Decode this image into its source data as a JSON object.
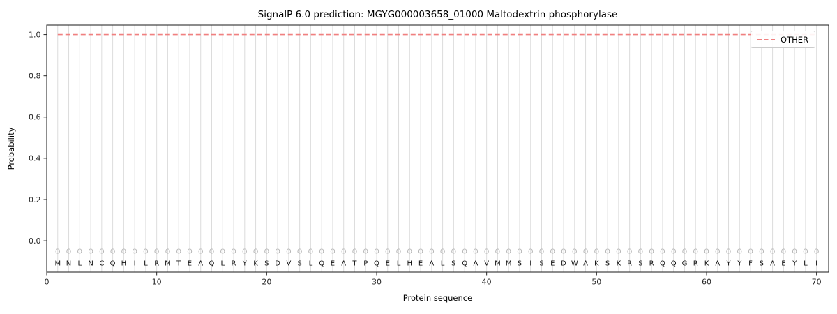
{
  "figure": {
    "background": "#ffffff"
  },
  "chart_data": {
    "type": "line",
    "title": "SignalP 6.0 prediction: MGYG000003658_01000 Maltodextrin phosphorylase",
    "xlabel": "Protein sequence",
    "ylabel": "Probability",
    "xlim": [
      0,
      71.1
    ],
    "ylim": [
      -0.152,
      1.046
    ],
    "xticks": [
      0,
      10,
      20,
      30,
      40,
      50,
      60,
      70
    ],
    "yticks": [
      "0.0",
      "0.2",
      "0.4",
      "0.6",
      "0.8",
      "1.0"
    ],
    "grid": "vertical gridline at every residue position",
    "legend": {
      "position": "upper right",
      "entries": [
        {
          "label": "OTHER",
          "color": "#f08080",
          "linestyle": "dashed"
        }
      ]
    },
    "series": [
      {
        "name": "OTHER",
        "color": "#f08080",
        "linestyle": "dashed",
        "x_start": 1,
        "x_end": 70,
        "value": 1.0
      }
    ],
    "sequence": "MNLNCQHILRMTEAQLRYKSDVSLQEATPQELHEALSQAVMMSISEDWAKSKRSRQQGRKAYYFSAEYLI",
    "position_marker": {
      "symbol": "O",
      "y": -0.05,
      "color": "#b3b3b3"
    },
    "sequence_letter_y": -0.107,
    "colors": {
      "grid": "#dcdcdc",
      "spine": "#1a1a1a",
      "tick": "#262626",
      "tick_label": "#262626",
      "letter": "#111111"
    }
  }
}
